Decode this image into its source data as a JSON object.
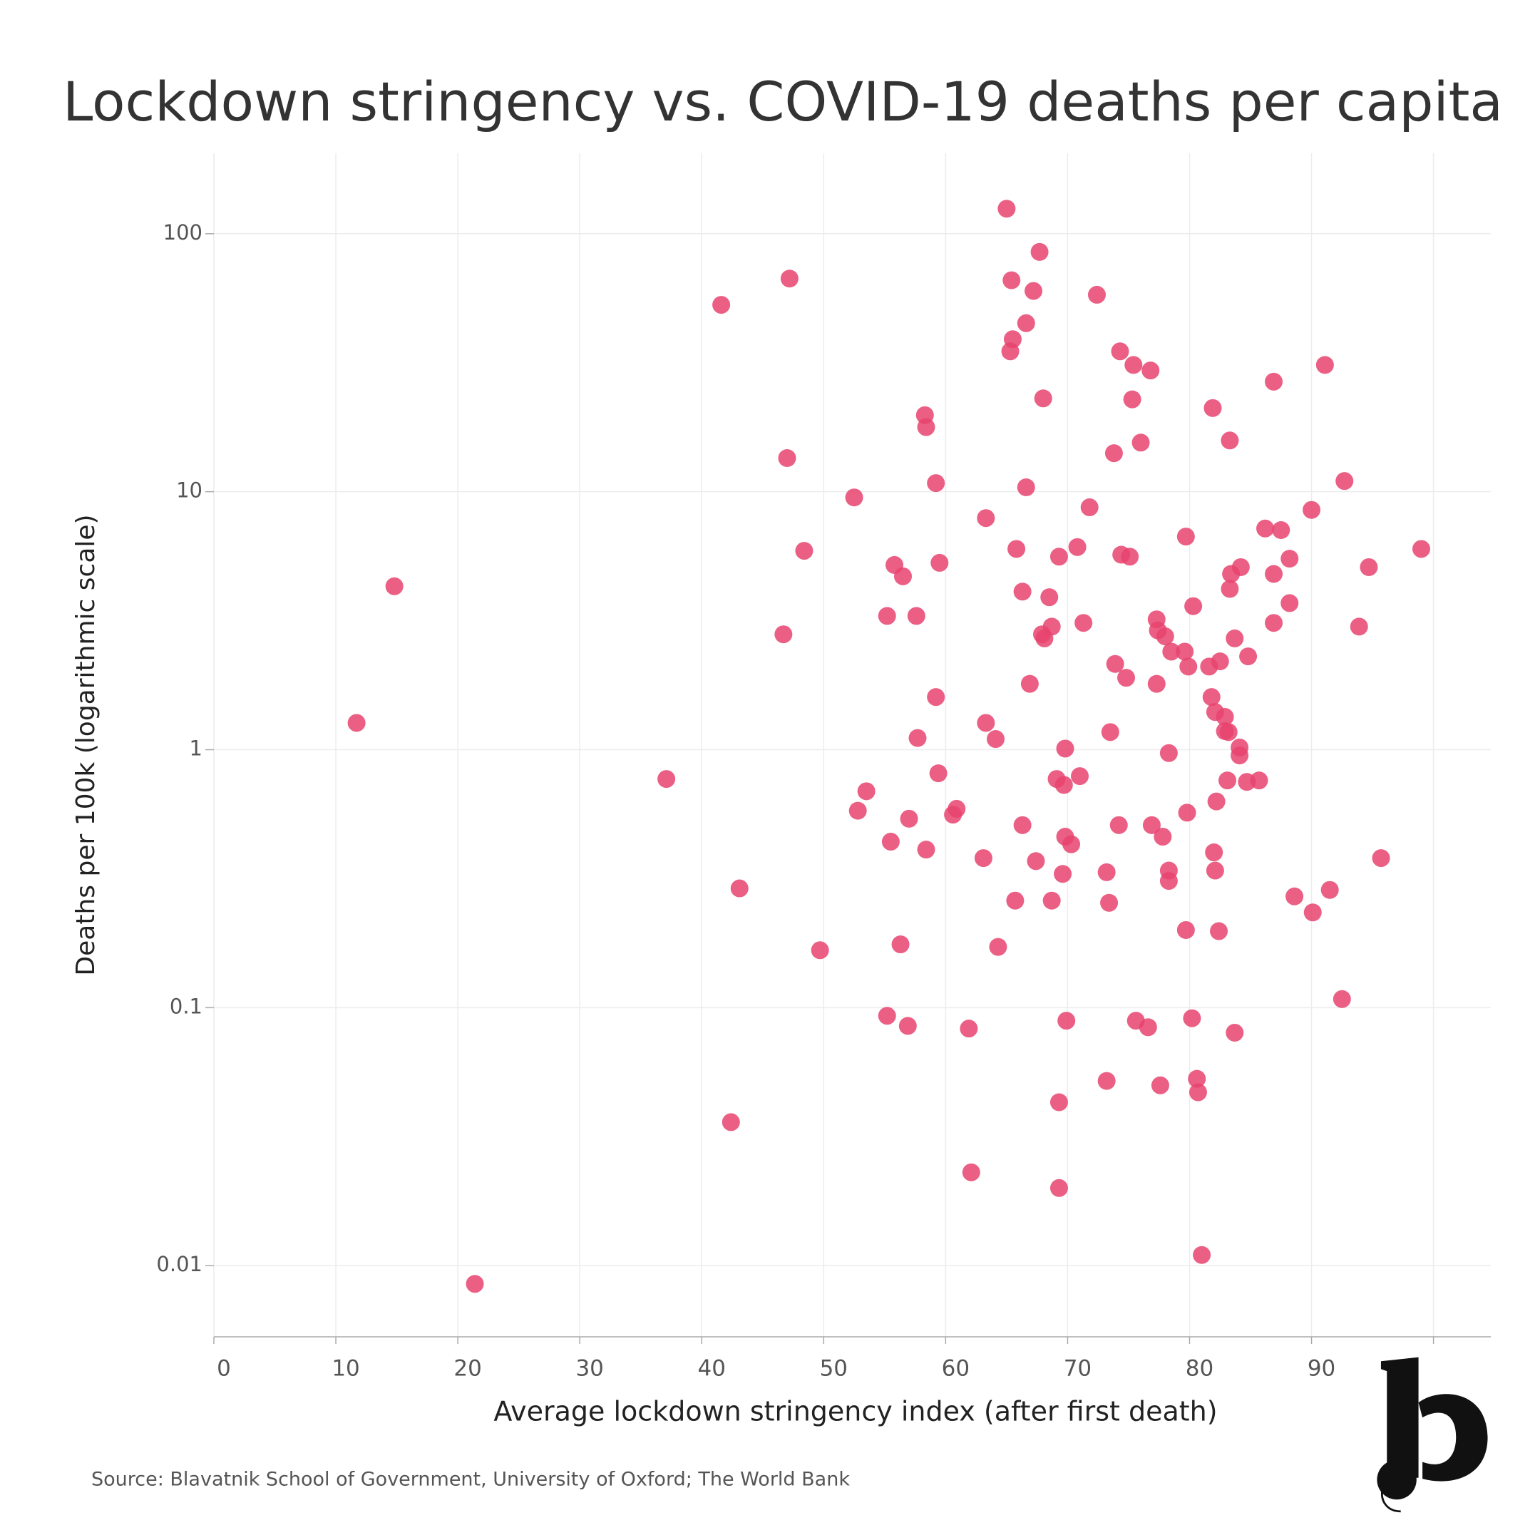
{
  "chart_data": {
    "type": "scatter",
    "title": "Lockdown stringency vs. COVID-19 deaths per capita",
    "x_label": "Average lockdown stringency index (after first death)",
    "y_label": "Deaths per 100k (logarithmic scale)",
    "source": "Source: Blavatnik School of Government, University of Oxford; The World Bank",
    "log_y": true,
    "grid": true,
    "xlim": [
      0,
      104.7
    ],
    "ylim": [
      0.0053,
      205
    ],
    "xticks": [
      0,
      10,
      20,
      30,
      40,
      50,
      60,
      70,
      80,
      90,
      100
    ],
    "yticks": [
      0.01,
      0.1,
      1,
      10,
      100
    ],
    "series": [
      {
        "color": "#e8436f",
        "x": [
          65.0,
          67.7,
          47.2,
          65.4,
          67.2,
          72.4,
          41.6,
          66.6,
          65.5,
          65.3,
          74.3,
          75.4,
          91.1,
          76.8,
          86.9,
          68.0,
          75.3,
          81.9,
          58.3,
          58.4,
          83.3,
          76.0,
          73.8,
          47.0,
          92.7,
          59.2,
          66.6,
          52.5,
          71.8,
          90.0,
          63.3,
          86.2,
          87.5,
          79.7,
          70.8,
          48.4,
          65.8,
          99.0,
          69.3,
          74.4,
          75.1,
          88.2,
          59.5,
          55.8,
          84.2,
          94.7,
          83.4,
          86.9,
          56.5,
          14.8,
          83.3,
          66.3,
          68.5,
          88.2,
          80.3,
          55.2,
          57.6,
          77.3,
          71.3,
          86.9,
          68.7,
          93.9,
          67.9,
          77.4,
          46.7,
          78.0,
          68.1,
          83.7,
          78.5,
          79.6,
          84.8,
          82.5,
          73.9,
          79.9,
          81.6,
          74.8,
          66.9,
          77.3,
          81.8,
          59.2,
          82.1,
          82.9,
          11.7,
          63.3,
          73.5,
          82.9,
          83.2,
          57.7,
          64.1,
          84.1,
          69.8,
          78.3,
          84.1,
          59.4,
          37.1,
          71.0,
          69.1,
          69.7,
          83.1,
          84.7,
          85.7,
          53.5,
          82.2,
          60.9,
          52.8,
          60.6,
          79.8,
          57.0,
          66.3,
          74.2,
          76.9,
          77.8,
          55.5,
          69.8,
          70.3,
          58.4,
          82.0,
          63.1,
          67.4,
          95.7,
          82.1,
          78.3,
          73.2,
          69.6,
          78.3,
          43.1,
          91.5,
          88.6,
          65.7,
          68.7,
          73.4,
          90.1,
          79.7,
          82.4,
          56.3,
          64.3,
          49.7,
          92.5,
          55.2,
          80.2,
          75.6,
          69.9,
          56.9,
          76.6,
          61.9,
          83.7,
          73.2,
          80.6,
          77.6,
          80.7,
          69.3,
          42.4,
          62.1,
          69.3,
          81.0,
          21.4
        ],
        "values": [
          125,
          85,
          67,
          66,
          60,
          58,
          53,
          45,
          39,
          35,
          35,
          31,
          31,
          29.5,
          26.7,
          23,
          22.8,
          21.1,
          19.8,
          17.8,
          15.8,
          15.5,
          14.1,
          13.5,
          11.0,
          10.8,
          10.4,
          9.5,
          8.7,
          8.5,
          7.9,
          7.2,
          7.1,
          6.7,
          6.1,
          5.9,
          6.0,
          6.0,
          5.6,
          5.7,
          5.6,
          5.5,
          5.3,
          5.2,
          5.1,
          5.1,
          4.8,
          4.8,
          4.7,
          4.3,
          4.2,
          4.1,
          3.9,
          3.7,
          3.6,
          3.3,
          3.3,
          3.2,
          3.1,
          3.1,
          3.0,
          3.0,
          2.8,
          2.9,
          2.8,
          2.75,
          2.7,
          2.7,
          2.4,
          2.4,
          2.3,
          2.2,
          2.15,
          2.1,
          2.1,
          1.9,
          1.8,
          1.8,
          1.6,
          1.6,
          1.4,
          1.34,
          1.27,
          1.27,
          1.17,
          1.18,
          1.17,
          1.11,
          1.1,
          1.02,
          1.01,
          0.97,
          0.95,
          0.81,
          0.77,
          0.79,
          0.77,
          0.73,
          0.76,
          0.75,
          0.76,
          0.69,
          0.63,
          0.59,
          0.58,
          0.56,
          0.57,
          0.54,
          0.51,
          0.51,
          0.51,
          0.46,
          0.44,
          0.46,
          0.43,
          0.41,
          0.4,
          0.38,
          0.37,
          0.38,
          0.34,
          0.34,
          0.335,
          0.33,
          0.31,
          0.29,
          0.286,
          0.27,
          0.26,
          0.26,
          0.255,
          0.234,
          0.2,
          0.198,
          0.176,
          0.172,
          0.167,
          0.108,
          0.093,
          0.091,
          0.089,
          0.089,
          0.085,
          0.084,
          0.083,
          0.08,
          0.052,
          0.053,
          0.05,
          0.047,
          0.043,
          0.036,
          0.023,
          0.02,
          0.011,
          0.0085
        ]
      }
    ]
  }
}
